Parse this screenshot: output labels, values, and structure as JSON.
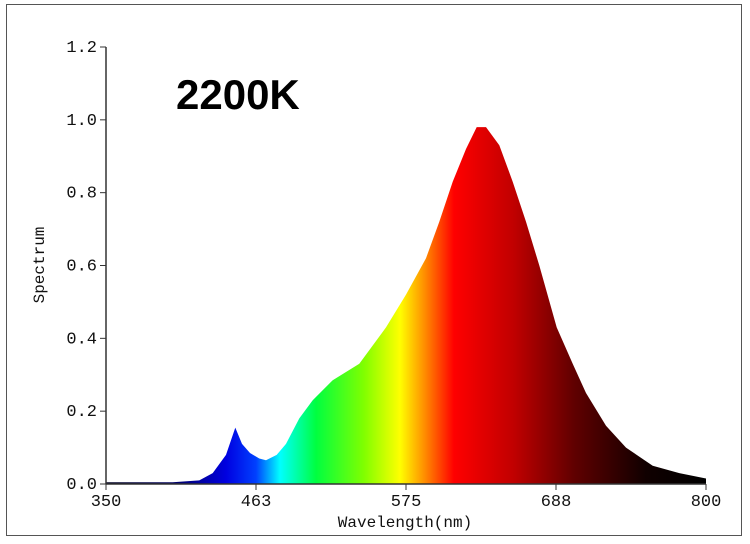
{
  "chart_data": {
    "type": "area",
    "title": "2200K",
    "xlabel": "Wavelength(nm)",
    "ylabel": "Spectrum",
    "xlim": [
      350,
      800
    ],
    "ylim": [
      0,
      1.2
    ],
    "xticks": [
      "350",
      "463",
      "575",
      "688",
      "800"
    ],
    "yticks": [
      "0.0",
      "0.2",
      "0.4",
      "0.6",
      "0.8",
      "1.0",
      "1.2"
    ],
    "grid": false,
    "fill": "visible-spectrum gradient",
    "x": [
      350,
      400,
      420,
      430,
      440,
      447,
      452,
      458,
      465,
      470,
      478,
      485,
      495,
      505,
      520,
      540,
      560,
      575,
      590,
      600,
      610,
      620,
      628,
      635,
      645,
      655,
      665,
      675,
      688,
      700,
      710,
      725,
      740,
      760,
      780,
      800
    ],
    "y": [
      0.005,
      0.005,
      0.01,
      0.03,
      0.08,
      0.155,
      0.11,
      0.085,
      0.07,
      0.065,
      0.08,
      0.11,
      0.18,
      0.23,
      0.285,
      0.33,
      0.43,
      0.52,
      0.62,
      0.72,
      0.83,
      0.92,
      0.98,
      0.98,
      0.93,
      0.83,
      0.72,
      0.6,
      0.43,
      0.33,
      0.25,
      0.16,
      0.1,
      0.05,
      0.03,
      0.015
    ]
  }
}
